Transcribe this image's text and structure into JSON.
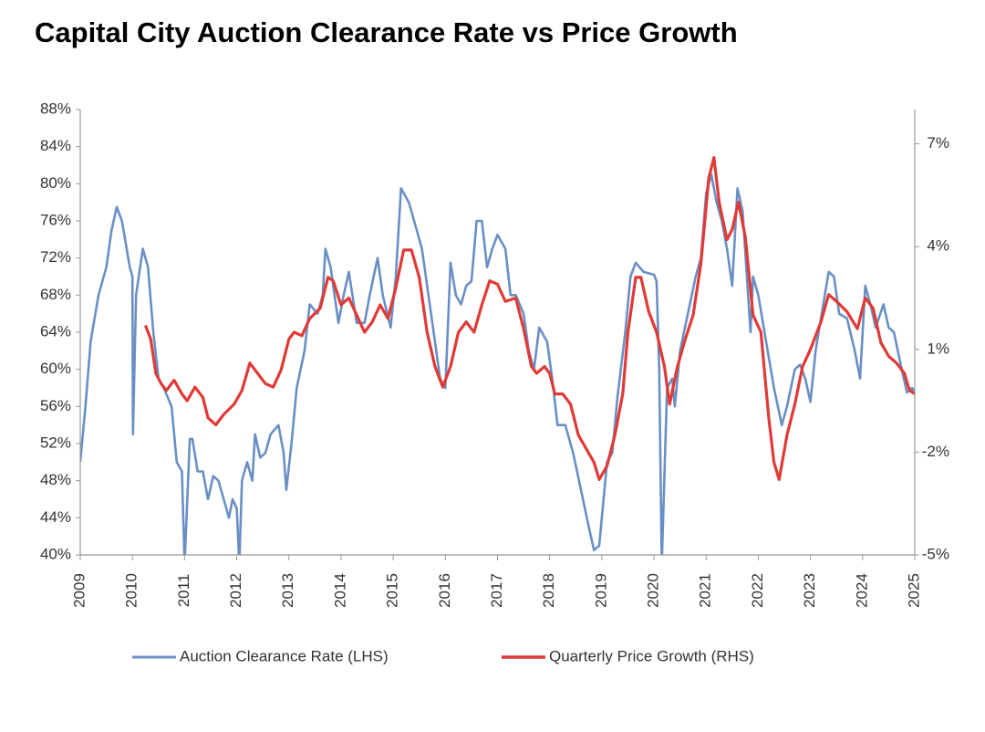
{
  "chart_data": {
    "type": "line",
    "title": "Capital City Auction Clearance Rate vs Price Growth",
    "xlim": [
      2009,
      2025
    ],
    "xticks": [
      2009,
      2010,
      2011,
      2012,
      2013,
      2014,
      2015,
      2016,
      2017,
      2018,
      2019,
      2020,
      2021,
      2022,
      2023,
      2024,
      2025
    ],
    "ylim": [
      40,
      88
    ],
    "yticks": [
      {
        "value": 40,
        "label": "40%"
      },
      {
        "value": 44,
        "label": "44%"
      },
      {
        "value": 48,
        "label": "48%"
      },
      {
        "value": 52,
        "label": "52%"
      },
      {
        "value": 56,
        "label": "56%"
      },
      {
        "value": 60,
        "label": "60%"
      },
      {
        "value": 64,
        "label": "64%"
      },
      {
        "value": 68,
        "label": "68%"
      },
      {
        "value": 72,
        "label": "72%"
      },
      {
        "value": 76,
        "label": "76%"
      },
      {
        "value": 80,
        "label": "80%"
      },
      {
        "value": 84,
        "label": "84%"
      },
      {
        "value": 88,
        "label": "88%"
      }
    ],
    "y2lim": [
      -5,
      8
    ],
    "y2ticks": [
      {
        "value": -5,
        "label": "-5%"
      },
      {
        "value": -2,
        "label": "-2%"
      },
      {
        "value": 1,
        "label": "1%"
      },
      {
        "value": 4,
        "label": "4%"
      },
      {
        "value": 7,
        "label": "7%"
      }
    ],
    "grid": false,
    "legend": "bottom",
    "series": [
      {
        "name": "Auction Clearance Rate (LHS)",
        "color": "#6a8fc4",
        "axis": "y",
        "x": [
          2009.0,
          2009.1,
          2009.2,
          2009.35,
          2009.5,
          2009.6,
          2009.7,
          2009.8,
          2009.95,
          2010.0,
          2010.01,
          2010.07,
          2010.2,
          2010.3,
          2010.4,
          2010.5,
          2010.6,
          2010.75,
          2010.85,
          2010.95,
          2011.0,
          2011.1,
          2011.15,
          2011.25,
          2011.35,
          2011.45,
          2011.55,
          2011.65,
          2011.75,
          2011.85,
          2011.92,
          2012.0,
          2012.05,
          2012.1,
          2012.2,
          2012.3,
          2012.35,
          2012.45,
          2012.55,
          2012.65,
          2012.8,
          2012.9,
          2012.95,
          2013.05,
          2013.15,
          2013.3,
          2013.4,
          2013.55,
          2013.65,
          2013.7,
          2013.8,
          2013.95,
          2014.05,
          2014.15,
          2014.3,
          2014.45,
          2014.55,
          2014.7,
          2014.8,
          2014.95,
          2015.05,
          2015.15,
          2015.3,
          2015.45,
          2015.55,
          2015.7,
          2015.8,
          2015.9,
          2016.0,
          2016.1,
          2016.2,
          2016.3,
          2016.4,
          2016.5,
          2016.6,
          2016.7,
          2016.8,
          2016.9,
          2017.0,
          2017.15,
          2017.25,
          2017.35,
          2017.5,
          2017.6,
          2017.7,
          2017.8,
          2017.95,
          2018.05,
          2018.15,
          2018.3,
          2018.45,
          2018.6,
          2018.75,
          2018.85,
          2018.95,
          2019.1,
          2019.2,
          2019.3,
          2019.45,
          2019.55,
          2019.65,
          2019.8,
          2020.0,
          2020.05,
          2020.1,
          2020.15,
          2020.25,
          2020.35,
          2020.4,
          2020.5,
          2020.65,
          2020.8,
          2020.9,
          2021.0,
          2021.1,
          2021.2,
          2021.3,
          2021.4,
          2021.5,
          2021.6,
          2021.7,
          2021.85,
          2021.9,
          2022.0,
          2022.15,
          2022.3,
          2022.45,
          2022.55,
          2022.7,
          2022.8,
          2022.9,
          2023.0,
          2023.1,
          2023.2,
          2023.35,
          2023.45,
          2023.55,
          2023.7,
          2023.85,
          2023.95,
          2024.05,
          2024.15,
          2024.25,
          2024.4,
          2024.5,
          2024.6,
          2024.75,
          2024.85,
          2024.95,
          2025.0
        ],
        "values": [
          50,
          56,
          63,
          68,
          71,
          75,
          77.5,
          76,
          71,
          70,
          53,
          68,
          73,
          71,
          64,
          59,
          58,
          56,
          50,
          49,
          39,
          52.5,
          52.5,
          49,
          49,
          46,
          48.5,
          48,
          46,
          44,
          46,
          45,
          39,
          48,
          50,
          48,
          53,
          50.5,
          51,
          53,
          54,
          51,
          47,
          52,
          58,
          62,
          67,
          66,
          68,
          73,
          71,
          65,
          68,
          70.5,
          65,
          65,
          68,
          72,
          68,
          64.5,
          70,
          79.5,
          78,
          75,
          73,
          67,
          63,
          59,
          58,
          71.5,
          68,
          67,
          69,
          69.5,
          76,
          76,
          71,
          73,
          74.5,
          73,
          68,
          68,
          66,
          62,
          60,
          64.5,
          63,
          59,
          54,
          54,
          51,
          47,
          43,
          40.5,
          41,
          50,
          51,
          57,
          64,
          70,
          71.5,
          70.5,
          70.2,
          69.5,
          60,
          39,
          58,
          59,
          56,
          62,
          66,
          70,
          72,
          79,
          81,
          78,
          76,
          73,
          69,
          79.5,
          77,
          64,
          70,
          68,
          63,
          58,
          54,
          56,
          60,
          60.5,
          59,
          56.5,
          62,
          65.5,
          70.5,
          70,
          66,
          65.5,
          62,
          59,
          69,
          67,
          64.5,
          67,
          64.5,
          64,
          60,
          57.5,
          58,
          57.5
        ]
      },
      {
        "name": "Quarterly Price Growth (RHS)",
        "color": "#e03a36",
        "axis": "y2",
        "x": [
          2010.25,
          2010.35,
          2010.45,
          2010.55,
          2010.65,
          2010.8,
          2010.95,
          2011.05,
          2011.2,
          2011.35,
          2011.45,
          2011.6,
          2011.75,
          2011.95,
          2012.1,
          2012.25,
          2012.4,
          2012.55,
          2012.7,
          2012.85,
          2013.0,
          2013.1,
          2013.25,
          2013.4,
          2013.6,
          2013.75,
          2013.85,
          2014.0,
          2014.15,
          2014.3,
          2014.45,
          2014.6,
          2014.75,
          2014.9,
          2015.05,
          2015.2,
          2015.35,
          2015.5,
          2015.65,
          2015.8,
          2015.95,
          2016.1,
          2016.25,
          2016.4,
          2016.55,
          2016.7,
          2016.85,
          2017.0,
          2017.15,
          2017.35,
          2017.5,
          2017.65,
          2017.75,
          2017.9,
          2018.0,
          2018.1,
          2018.25,
          2018.4,
          2018.55,
          2018.7,
          2018.85,
          2018.95,
          2019.1,
          2019.25,
          2019.4,
          2019.5,
          2019.65,
          2019.75,
          2019.9,
          2020.05,
          2020.2,
          2020.3,
          2020.45,
          2020.6,
          2020.75,
          2020.9,
          2021.05,
          2021.15,
          2021.25,
          2021.4,
          2021.5,
          2021.62,
          2021.75,
          2021.9,
          2022.05,
          2022.2,
          2022.3,
          2022.4,
          2022.55,
          2022.7,
          2022.85,
          2023.0,
          2023.2,
          2023.35,
          2023.5,
          2023.7,
          2023.9,
          2024.05,
          2024.2,
          2024.35,
          2024.5,
          2024.65,
          2024.8,
          2024.9,
          2025.0
        ],
        "values": [
          1.7,
          1.3,
          0.3,
          0.0,
          -0.2,
          0.1,
          -0.3,
          -0.5,
          -0.1,
          -0.4,
          -1.0,
          -1.2,
          -0.9,
          -0.6,
          -0.2,
          0.6,
          0.3,
          0.0,
          -0.1,
          0.4,
          1.3,
          1.5,
          1.4,
          1.9,
          2.2,
          3.1,
          3.0,
          2.3,
          2.5,
          2.0,
          1.5,
          1.8,
          2.3,
          1.9,
          2.8,
          3.9,
          3.9,
          3.1,
          1.5,
          0.5,
          -0.1,
          0.5,
          1.5,
          1.8,
          1.5,
          2.3,
          3.0,
          2.9,
          2.4,
          2.5,
          1.6,
          0.5,
          0.3,
          0.5,
          0.3,
          -0.3,
          -0.3,
          -0.6,
          -1.5,
          -1.9,
          -2.3,
          -2.8,
          -2.4,
          -1.5,
          -0.3,
          1.5,
          3.1,
          3.1,
          2.1,
          1.5,
          0.5,
          -0.6,
          0.5,
          1.3,
          2.0,
          3.5,
          6.0,
          6.6,
          5.3,
          4.2,
          4.5,
          5.3,
          4.3,
          2.0,
          1.5,
          -1.0,
          -2.3,
          -2.8,
          -1.5,
          -0.6,
          0.5,
          1.0,
          1.8,
          2.6,
          2.4,
          2.1,
          1.6,
          2.5,
          2.2,
          1.2,
          0.8,
          0.6,
          0.3,
          -0.2,
          -0.3
        ]
      }
    ]
  }
}
